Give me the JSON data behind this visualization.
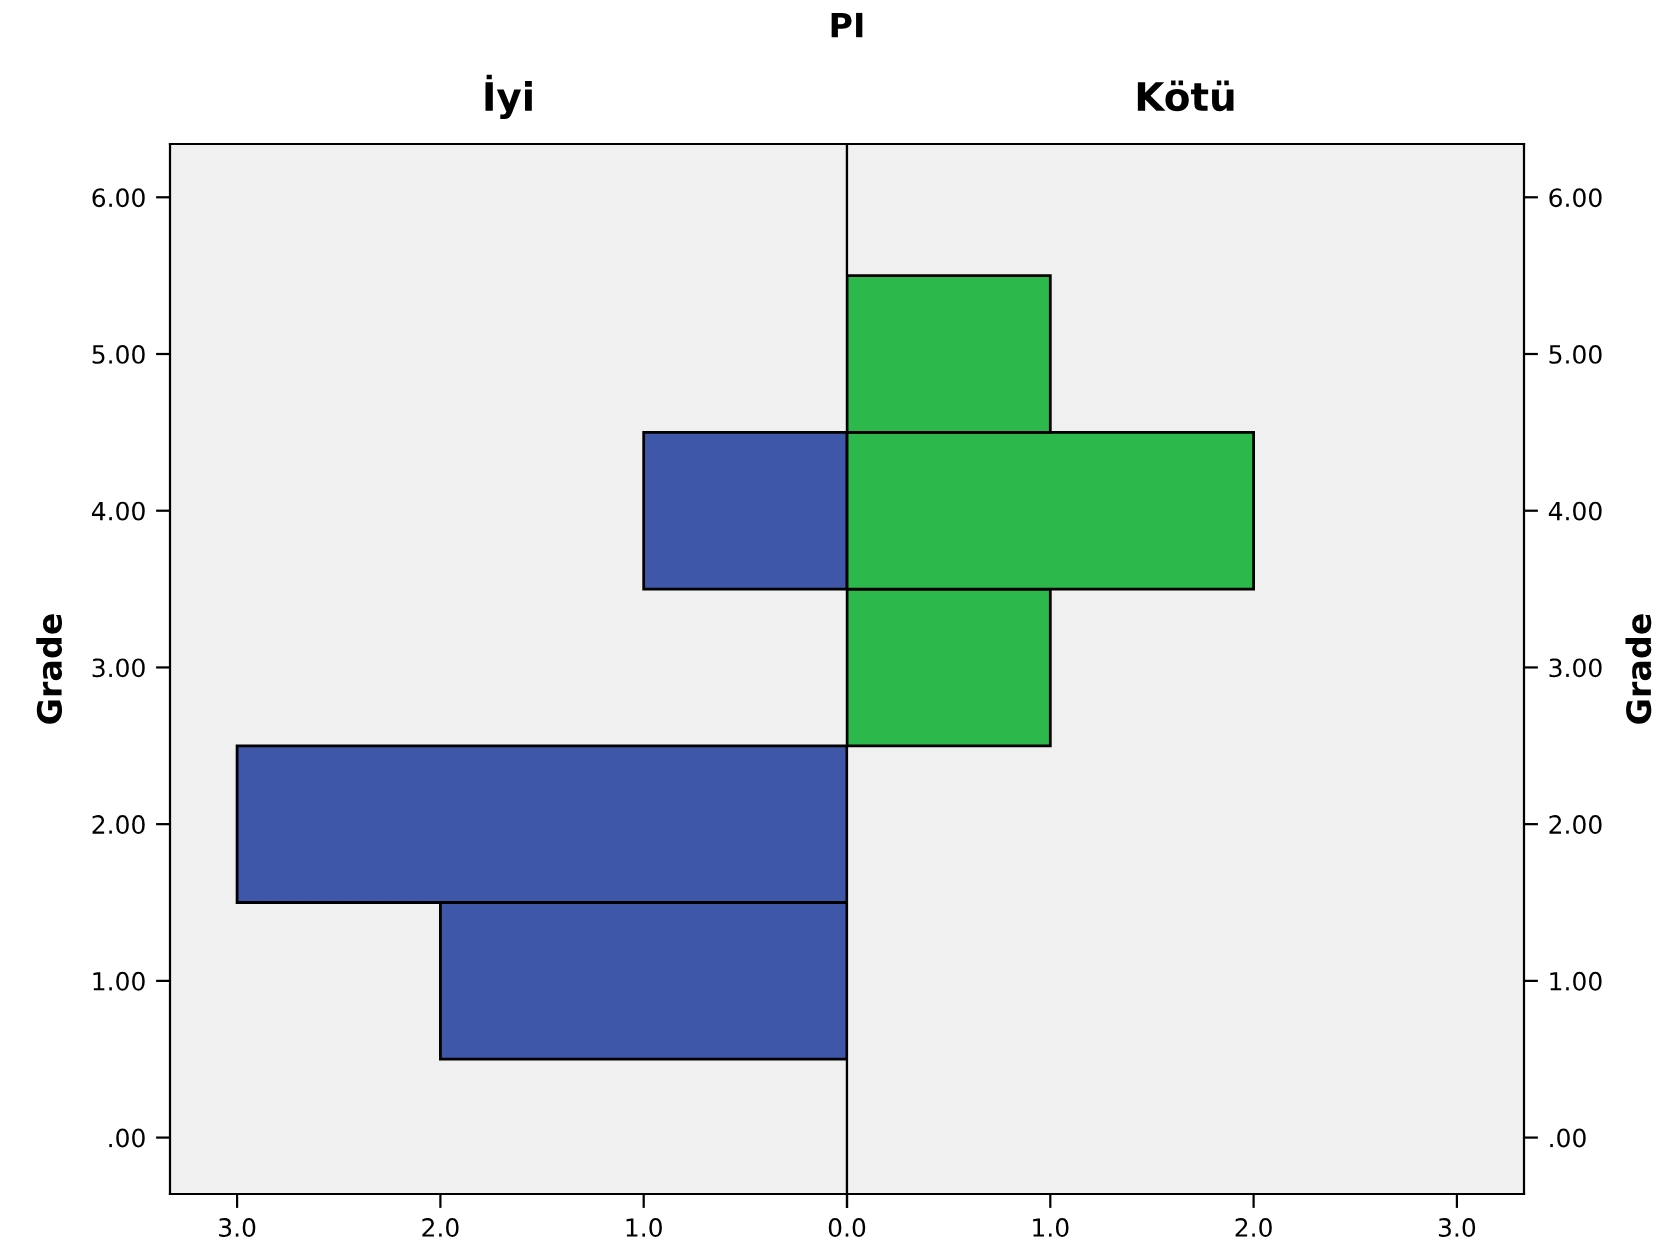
{
  "chart_data": [
    {
      "type": "histogram",
      "orientation": "horizontal",
      "title": "PI",
      "subtitle": "İyi",
      "ylabel": "Grade",
      "bins": [
        0.5,
        1.5,
        2.5,
        3.5,
        4.5,
        5.5
      ],
      "values": [
        2,
        3,
        null,
        1,
        null
      ],
      "color": "#3f57a8",
      "xlim": [
        3.33,
        0
      ],
      "xticks": [
        {
          "value": 3,
          "label": "3.0"
        },
        {
          "value": 2,
          "label": "2.0"
        },
        {
          "value": 1,
          "label": "1.0"
        },
        {
          "value": 0,
          "label": null
        }
      ],
      "ylim": [
        -0.36,
        6.34
      ],
      "yticks": [
        {
          "value": 0,
          "label": ".00"
        },
        {
          "value": 1,
          "label": "1.00"
        },
        {
          "value": 2,
          "label": "2.00"
        },
        {
          "value": 3,
          "label": "3.00"
        },
        {
          "value": 4,
          "label": "4.00"
        },
        {
          "value": 5,
          "label": "5.00"
        },
        {
          "value": 6,
          "label": "6.00"
        }
      ],
      "grid": false,
      "legend": false
    },
    {
      "type": "histogram",
      "orientation": "horizontal",
      "subtitle": "Kötü",
      "ylabel": "Grade",
      "bins": [
        0.5,
        1.5,
        2.5,
        3.5,
        4.5,
        5.5
      ],
      "values": [
        null,
        null,
        1,
        2,
        1
      ],
      "color": "#2db84b",
      "xlim": [
        0,
        3.33
      ],
      "xticks": [
        {
          "value": 0,
          "label": "0.0"
        },
        {
          "value": 1,
          "label": "1.0"
        },
        {
          "value": 2,
          "label": "2.0"
        },
        {
          "value": 3,
          "label": "3.0"
        }
      ],
      "ylim": [
        -0.36,
        6.34
      ],
      "yticks": [
        {
          "value": 0,
          "label": ".00"
        },
        {
          "value": 1,
          "label": "1.00"
        },
        {
          "value": 2,
          "label": "2.00"
        },
        {
          "value": 3,
          "label": "3.00"
        },
        {
          "value": 4,
          "label": "4.00"
        },
        {
          "value": 5,
          "label": "5.00"
        },
        {
          "value": 6,
          "label": "6.00"
        }
      ],
      "grid": false,
      "legend": false
    }
  ]
}
